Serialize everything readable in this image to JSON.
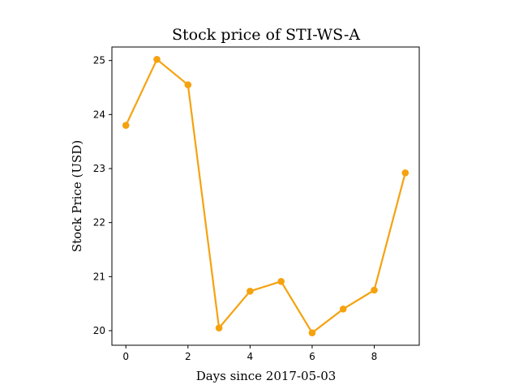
{
  "chart_data": {
    "type": "line",
    "title": "Stock price of STI-WS-A",
    "xlabel": "Days since 2017-05-03",
    "ylabel": "Stock Price (USD)",
    "x": [
      0,
      1,
      2,
      3,
      4,
      5,
      6,
      7,
      8,
      9
    ],
    "series": [
      {
        "values": [
          23.8,
          25.02,
          24.55,
          20.05,
          20.73,
          20.91,
          19.96,
          20.4,
          20.75,
          22.92
        ],
        "color": "#f5a20f"
      }
    ],
    "xlim": [
      -0.45,
      9.45
    ],
    "ylim": [
      19.73,
      25.25
    ],
    "xticks": [
      0,
      2,
      4,
      6,
      8
    ],
    "yticks": [
      20,
      21,
      22,
      23,
      24,
      25
    ],
    "grid": false,
    "legend": "none"
  }
}
